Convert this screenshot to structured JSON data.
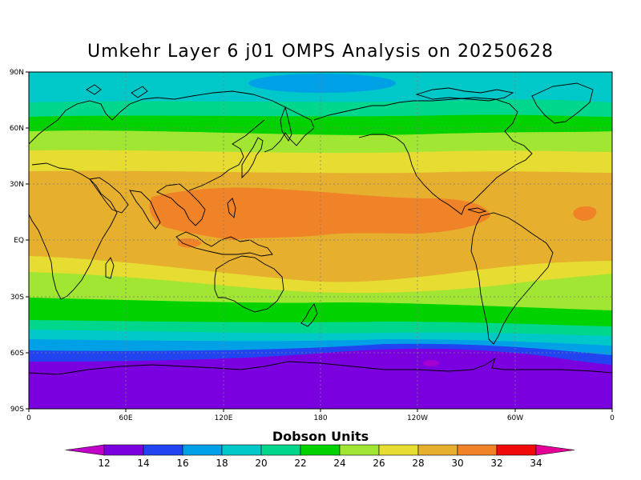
{
  "title": "Umkehr Layer 6 j01 OMPS Analysis on 20250628",
  "colorbar": {
    "title": "Dobson Units",
    "tick_labels": [
      "12",
      "14",
      "16",
      "18",
      "20",
      "22",
      "24",
      "26",
      "28",
      "30",
      "32",
      "34"
    ]
  },
  "axes": {
    "lat_labels": [
      "90N",
      "60N",
      "30N",
      "EQ",
      "30S",
      "60S",
      "90S"
    ],
    "lon_labels": [
      "0",
      "60E",
      "120E",
      "180",
      "120W",
      "60W",
      "0"
    ]
  },
  "colors": {
    "levels": [
      "#c000c8",
      "#7a00e0",
      "#2244f0",
      "#00a0e6",
      "#00c8c8",
      "#00d68c",
      "#00d200",
      "#a0e632",
      "#e6dc32",
      "#e6af2d",
      "#f08228",
      "#f00a0a",
      "#e60096"
    ],
    "grid": "#7f7f7f",
    "coast": "#000000"
  },
  "chart_data": {
    "type": "heatmap",
    "title": "Umkehr Layer 6 j01 OMPS Analysis on 20250628",
    "units": "Dobson Units",
    "contour_levels": [
      12,
      14,
      16,
      18,
      20,
      22,
      24,
      26,
      28,
      30,
      32,
      34
    ],
    "lat_range": [
      -90,
      90
    ],
    "lon_range": [
      0,
      360
    ],
    "grid": true,
    "colorbar_placement": "bottom",
    "zonal_profile_approx": {
      "lat": [
        90,
        80,
        70,
        60,
        50,
        40,
        30,
        20,
        10,
        0,
        -10,
        -20,
        -30,
        -40,
        -50,
        -60,
        -70,
        -80,
        -90
      ],
      "value": [
        19,
        19.5,
        21,
        23.5,
        25.5,
        27,
        28.5,
        29.5,
        30,
        29.5,
        28.5,
        27.5,
        26,
        24,
        21,
        17,
        14,
        13.5,
        13.5
      ]
    },
    "regional_features": [
      {
        "description": "maximum 30-32 DU over tropical western Pacific and central Pacific",
        "lat_range": [
          0,
          25
        ],
        "lon_range": [
          90,
          270
        ],
        "value": 31
      },
      {
        "description": "minimum 18-20 DU over Arctic near 180",
        "lat_range": [
          80,
          90
        ],
        "lon_range": [
          150,
          210
        ],
        "value": 19
      },
      {
        "description": "minimum below 14 DU over Antarctica",
        "lat_range": [
          -90,
          -65
        ],
        "lon_range": [
          0,
          360
        ],
        "value": 13
      }
    ]
  }
}
